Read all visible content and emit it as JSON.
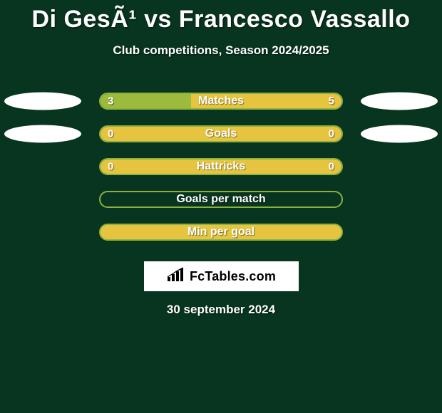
{
  "background_color": "#08351f",
  "title": "Di GesÃ¹ vs Francesco Vassallo",
  "subtitle": "Club competitions, Season 2024/2025",
  "footer_date": "30 september 2024",
  "logo_text": "FcTables.com",
  "colors": {
    "green_border": "#8bb13f",
    "green_fill": "#9cba3c",
    "yellow_fill": "#e6c43f",
    "oval": "#ffffff",
    "text_shadow": "rgba(0,0,0,0.5)"
  },
  "rows": [
    {
      "label": "Matches",
      "left_value": "3",
      "right_value": "5",
      "left_pct": 37.5,
      "right_pct": 62.5,
      "left_color": "#9cba3c",
      "right_color": "#e6c43f",
      "show_left_oval": true,
      "show_right_oval": true
    },
    {
      "label": "Goals",
      "left_value": "0",
      "right_value": "0",
      "left_pct": 50,
      "right_pct": 50,
      "left_color": "#e6c43f",
      "right_color": "#e6c43f",
      "show_left_oval": true,
      "show_right_oval": true
    },
    {
      "label": "Hattricks",
      "left_value": "0",
      "right_value": "0",
      "left_pct": 50,
      "right_pct": 50,
      "left_color": "#e6c43f",
      "right_color": "#e6c43f",
      "show_left_oval": false,
      "show_right_oval": false
    },
    {
      "label": "Goals per match",
      "left_value": "",
      "right_value": "",
      "left_pct": 0,
      "right_pct": 0,
      "left_color": "transparent",
      "right_color": "transparent",
      "show_left_oval": false,
      "show_right_oval": false
    },
    {
      "label": "Min per goal",
      "left_value": "",
      "right_value": "",
      "left_pct": 0,
      "right_pct": 0,
      "left_color": "#e6c43f",
      "right_color": "#e6c43f",
      "full_fill": true,
      "show_left_oval": false,
      "show_right_oval": false
    }
  ]
}
